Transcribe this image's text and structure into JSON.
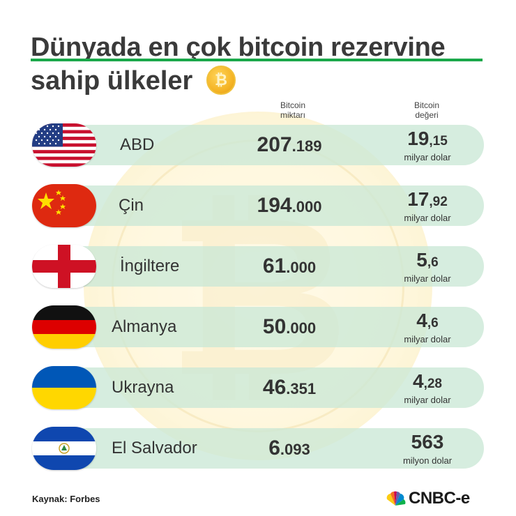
{
  "title": {
    "line1": "Dünyada en çok bitcoin rezervine",
    "line2": "sahip ülkeler"
  },
  "columns": {
    "amount_l1": "Bitcoin",
    "amount_l2": "miktarı",
    "value_l1": "Bitcoin",
    "value_l2": "değeri"
  },
  "rows": [
    {
      "country": "ABD",
      "amount_big": "207",
      "amount_small": ".189",
      "value_big": "19",
      "value_small": ",15",
      "unit": "milyar dolar",
      "flag": "usa-flag-icon"
    },
    {
      "country": "Çin",
      "amount_big": "194",
      "amount_small": ".000",
      "value_big": "17",
      "value_small": ",92",
      "unit": "milyar dolar",
      "flag": "china-flag-icon"
    },
    {
      "country": "İngiltere",
      "amount_big": "61",
      "amount_small": ".000",
      "value_big": "5",
      "value_small": ",6",
      "unit": "milyar dolar",
      "flag": "england-flag-icon"
    },
    {
      "country": "Almanya",
      "amount_big": "50",
      "amount_small": ".000",
      "value_big": "4",
      "value_small": ",6",
      "unit": "milyar dolar",
      "flag": "germany-flag-icon"
    },
    {
      "country": "Ukrayna",
      "amount_big": "46",
      "amount_small": ".351",
      "value_big": "4",
      "value_small": ",28",
      "unit": "milyar dolar",
      "flag": "ukraine-flag-icon"
    },
    {
      "country": "El Salvador",
      "amount_big": "6",
      "amount_small": ".093",
      "value_big": "563",
      "value_small": "",
      "unit": "milyon dolar",
      "flag": "el-salvador-flag-icon"
    }
  ],
  "source": "Kaynak: Forbes",
  "brand": {
    "name": "CNBC-e",
    "accent": "#1aa84a"
  }
}
